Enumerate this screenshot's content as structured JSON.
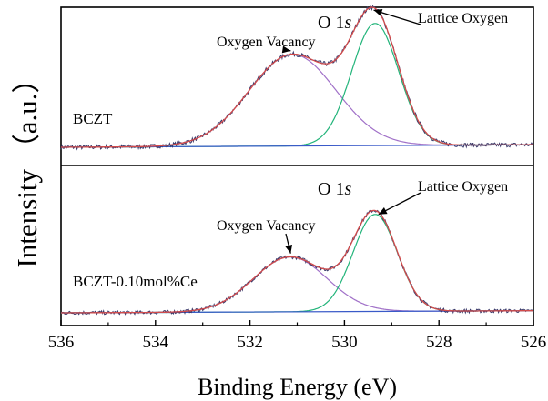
{
  "chart_data": {
    "type": "line",
    "xlabel": "Binding Energy (eV)",
    "ylabel": "Intensity （a.u.）",
    "xlim": [
      536,
      526
    ],
    "x_reversed": true,
    "x_ticks": [
      "536",
      "534",
      "532",
      "530",
      "528",
      "526"
    ],
    "colors": {
      "raw": "#3a3a6a",
      "fit": "#d24b4b",
      "vacancy": "#a070c8",
      "lattice": "#22b47a",
      "baseline": "#3a5ac8"
    },
    "panels": [
      {
        "sample_label": "BCZT",
        "peak_title_main": "O 1",
        "peak_title_italic": "s",
        "annotations": [
          {
            "text": "Oxygen Vacancy",
            "target_x": 531.1
          },
          {
            "text": "Lattice Oxygen",
            "target_x": 529.4
          }
        ],
        "baseline": [
          0.0,
          0.02
        ],
        "series": [
          {
            "name": "Oxygen Vacancy",
            "role": "vacancy",
            "center": 531.1,
            "height": 0.72,
            "sigma": 0.92
          },
          {
            "name": "Lattice Oxygen",
            "role": "lattice",
            "center": 529.35,
            "height": 0.96,
            "sigma": 0.5
          }
        ]
      },
      {
        "sample_label": "BCZT-0.10mol%Ce",
        "peak_title_main": "O 1",
        "peak_title_italic": "s",
        "annotations": [
          {
            "text": "Oxygen Vacancy",
            "target_x": 531.1
          },
          {
            "text": "Lattice Oxygen",
            "target_x": 529.3
          }
        ],
        "baseline": [
          0.0,
          0.02
        ],
        "series": [
          {
            "name": "Oxygen Vacancy",
            "role": "vacancy",
            "center": 531.15,
            "height": 0.52,
            "sigma": 0.78
          },
          {
            "name": "Lattice Oxygen",
            "role": "lattice",
            "center": 529.35,
            "height": 0.92,
            "sigma": 0.47
          }
        ]
      }
    ]
  }
}
